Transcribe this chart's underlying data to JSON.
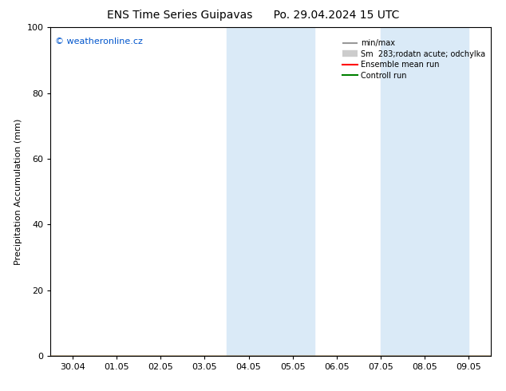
{
  "title_left": "ENS Time Series Guipavas",
  "title_right": "Po. 29.04.2024 15 UTC",
  "ylabel": "Precipitation Accumulation (mm)",
  "watermark": "© weatheronline.cz",
  "watermark_color": "#0055cc",
  "ylim": [
    0,
    100
  ],
  "xtick_labels": [
    "30.04",
    "01.05",
    "02.05",
    "03.05",
    "04.05",
    "05.05",
    "06.05",
    "07.05",
    "08.05",
    "09.05"
  ],
  "ytick_values": [
    0,
    20,
    40,
    60,
    80,
    100
  ],
  "shaded_regions": [
    {
      "xstart": 4,
      "xend": 5,
      "color": "#daeaf7"
    },
    {
      "xstart": 5,
      "xend": 6,
      "color": "#daeaf7"
    },
    {
      "xstart": 7.5,
      "xend": 8.5,
      "color": "#daeaf7"
    },
    {
      "xstart": 8.5,
      "xend": 9.5,
      "color": "#daeaf7"
    }
  ],
  "background_color": "#ffffff",
  "legend_min_max_color": "#999999",
  "legend_sm_color": "#cccccc",
  "legend_ensemble_color": "#ff0000",
  "legend_control_color": "#008000",
  "title_fontsize": 10,
  "axis_label_fontsize": 8,
  "tick_fontsize": 8
}
